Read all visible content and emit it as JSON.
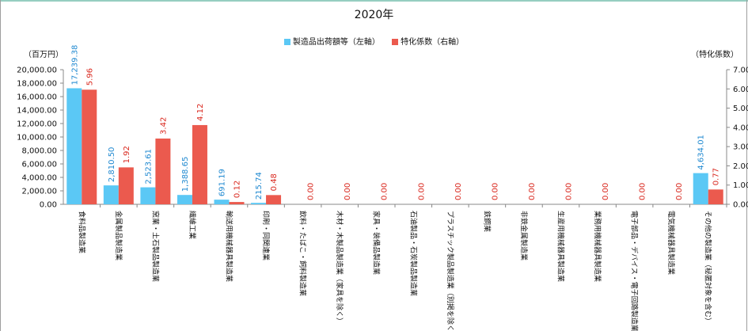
{
  "chart_data": {
    "type": "bar",
    "title": "2020年",
    "y_left_unit": "（百万円）",
    "y_right_unit": "（特化係数）",
    "categories": [
      "食料品製造業",
      "金属製品製造業",
      "窯業・土石製品製造業",
      "繊維工業",
      "輸送用機械器具製造業",
      "印刷・同関連業",
      "飲料・たばこ・飼料製造業",
      "木材・木製品製造業（家具を除く）",
      "家具・装備品製造業",
      "石油製品・石炭製品製造業",
      "プラスチック製品製造業（別掲を除く）",
      "鉄鋼業",
      "非鉄金属製造業",
      "生産用機械器具製造業",
      "業務用機械器具製造業",
      "電子部品・デバイス・電子回路製造業",
      "電気機械器具製造業",
      "その他の製造業（秘匿対象を含む）"
    ],
    "series": [
      {
        "name": "製造品出荷額等（左軸）",
        "axis": "left",
        "color": "#5bc8f5",
        "values": [
          17239.38,
          2810.5,
          2523.61,
          1388.65,
          691.19,
          215.74,
          null,
          null,
          null,
          null,
          null,
          null,
          null,
          null,
          null,
          null,
          null,
          4634.01
        ],
        "labels": [
          "17,239.38",
          "2,810.50",
          "2,523.61",
          "1,388.65",
          "691.19",
          "215.74",
          "",
          "",
          "",
          "",
          "",
          "",
          "",
          "",
          "",
          "",
          "",
          "4,634.01"
        ]
      },
      {
        "name": "特化係数（右軸）",
        "axis": "right",
        "color": "#eb5a4e",
        "values": [
          5.96,
          1.92,
          3.42,
          4.12,
          0.12,
          0.48,
          0,
          0,
          0,
          0,
          0,
          0,
          0,
          0,
          0,
          0,
          0,
          0.77
        ],
        "labels": [
          "5.96",
          "1.92",
          "3.42",
          "4.12",
          "0.12",
          "0.48",
          "0.00",
          "0.00",
          "0.00",
          "0.00",
          "0.00",
          "0.00",
          "0.00",
          "0.00",
          "0.00",
          "0.00",
          "0.00",
          "0.77"
        ]
      }
    ],
    "y_left": {
      "min": 0,
      "max": 20000,
      "step": 2000,
      "tick_labels": [
        "0.00",
        "2,000.00",
        "4,000.00",
        "6,000.00",
        "8,000.00",
        "10,000.00",
        "12,000.00",
        "14,000.00",
        "16,000.00",
        "18,000.00",
        "20,000.00"
      ]
    },
    "y_right": {
      "min": 0,
      "max": 7,
      "step": 1,
      "tick_labels": [
        "0.00",
        "1.00",
        "2.00",
        "3.00",
        "4.00",
        "5.00",
        "6.00",
        "7.00"
      ]
    },
    "legend_position": "top",
    "grid": false,
    "label_colors": {
      "left": "#1e88d0",
      "right": "#d9261c"
    },
    "frame_color": "#2e9e82"
  }
}
